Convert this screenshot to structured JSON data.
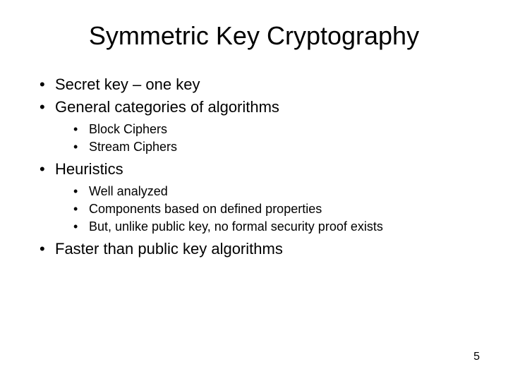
{
  "title": "Symmetric Key Cryptography",
  "bullets": {
    "item0": "Secret key – one key",
    "item1": "General categories of algorithms",
    "item1_sub": {
      "s0": "Block Ciphers",
      "s1": "Stream Ciphers"
    },
    "item2": "Heuristics",
    "item2_sub": {
      "s0": "Well analyzed",
      "s1": "Components based on defined properties",
      "s2": "But, unlike public key, no formal security proof exists"
    },
    "item3": "Faster than public key algorithms"
  },
  "page_number": "5",
  "style": {
    "background_color": "#ffffff",
    "text_color": "#000000",
    "title_fontsize": 36,
    "level1_fontsize": 22,
    "level2_fontsize": 18,
    "font_family": "Arial"
  }
}
